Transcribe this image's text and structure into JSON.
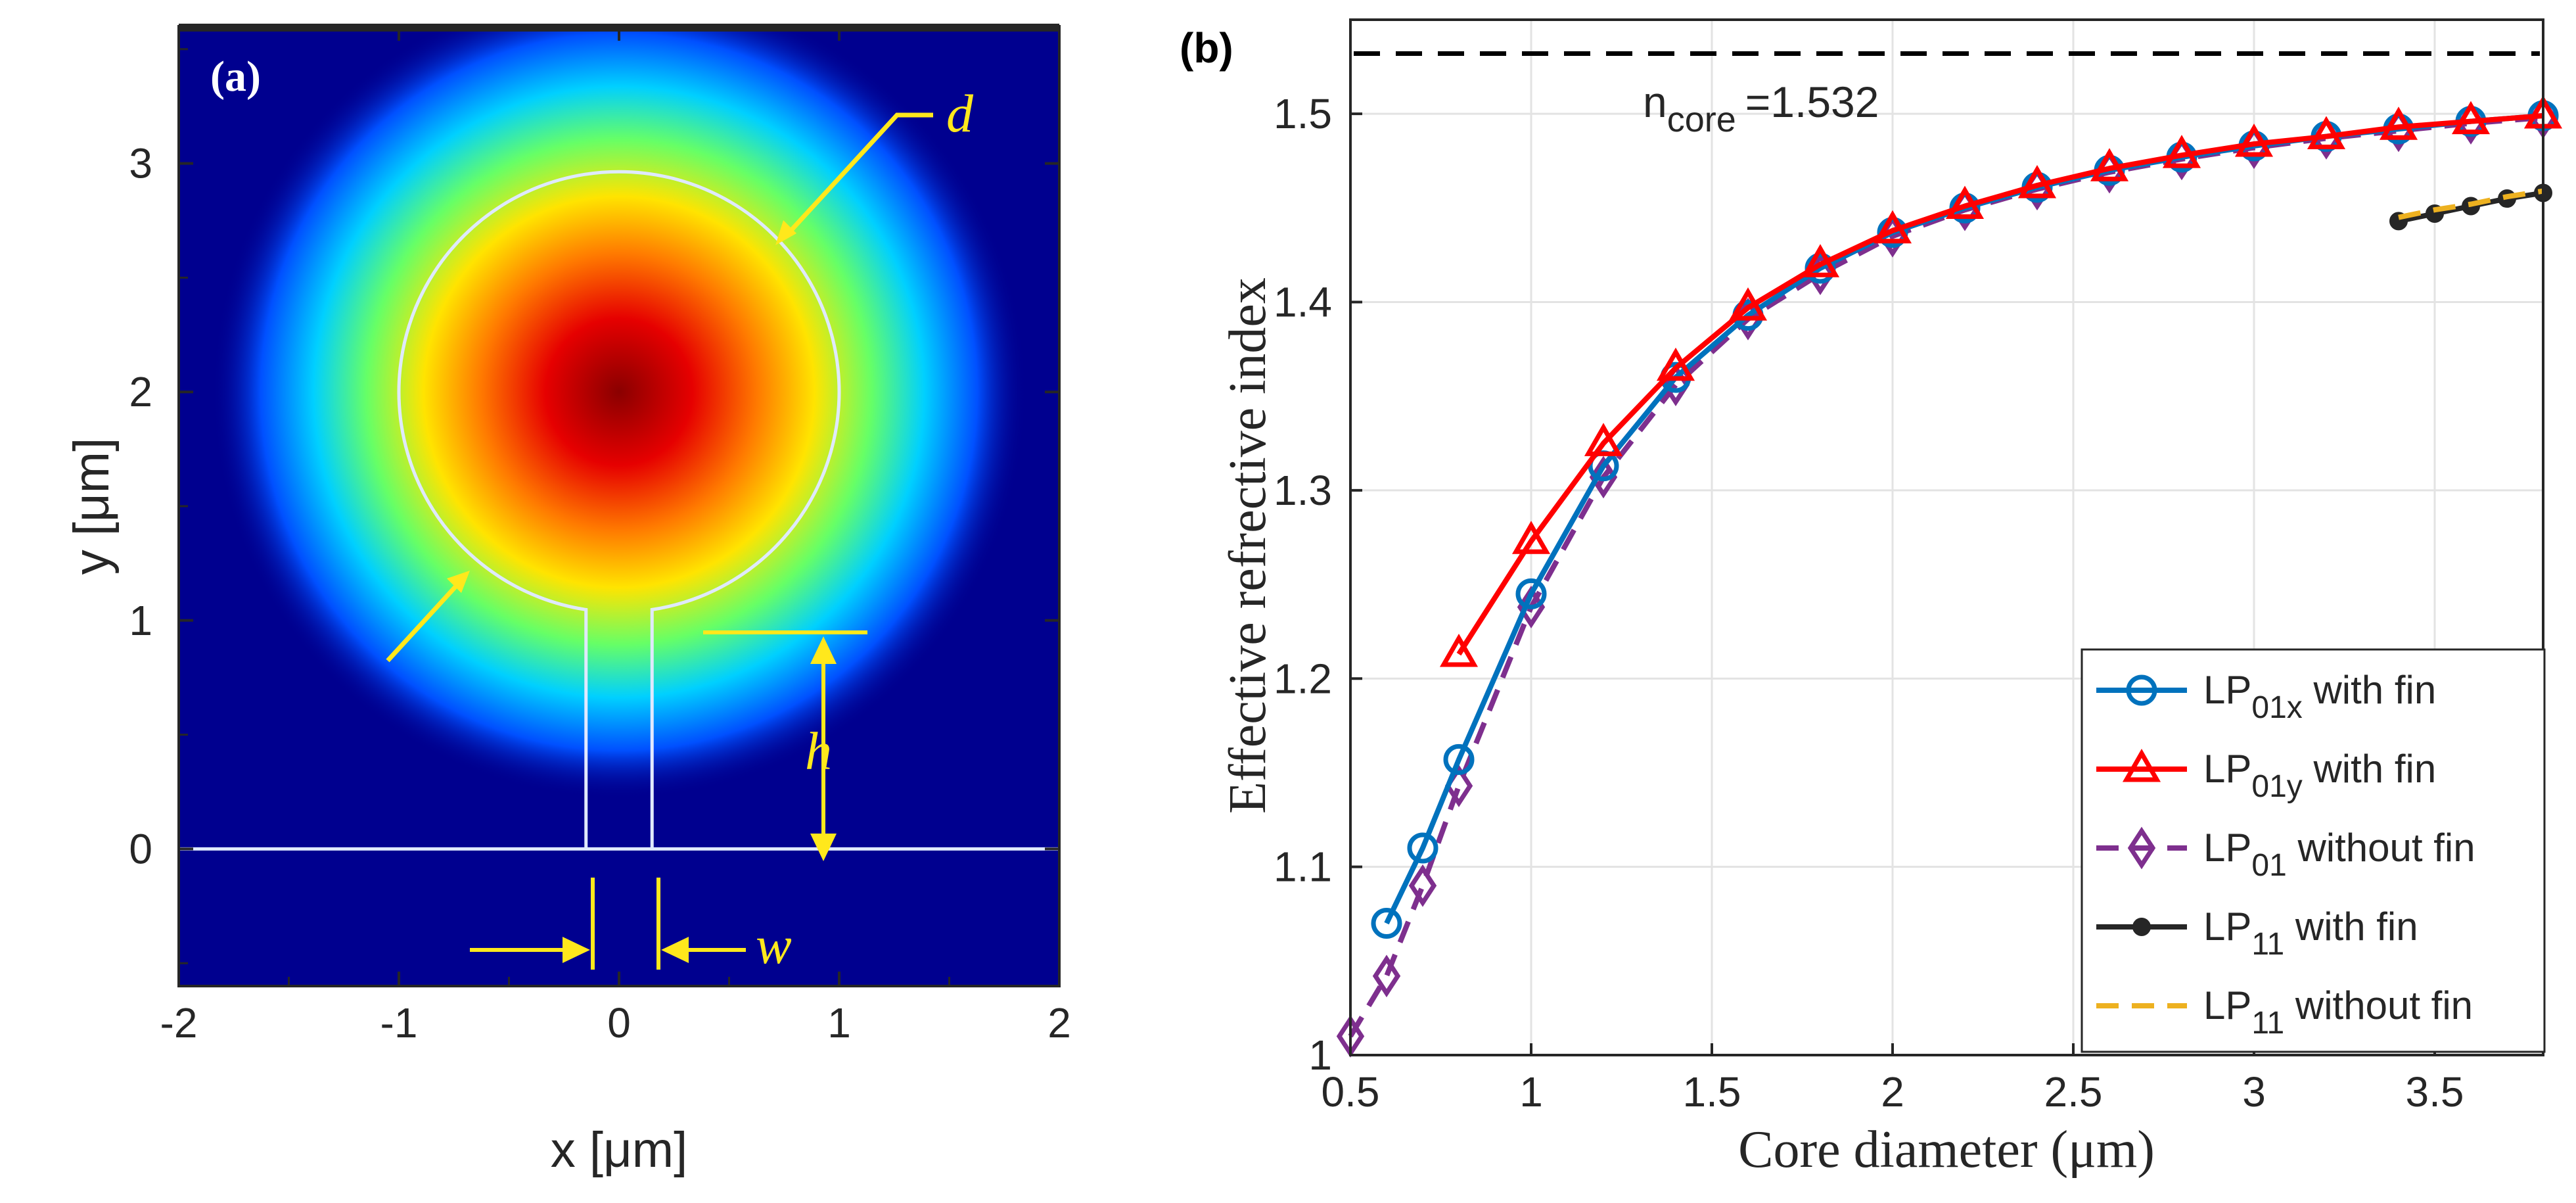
{
  "chart_data": [
    {
      "panel": "(a)",
      "type": "heatmap",
      "title": "",
      "xlabel": "x [μm]",
      "ylabel": "y [μm]",
      "xlim": [
        -2,
        2
      ],
      "ylim": [
        -0.6,
        3.6
      ],
      "xticks": [
        "-2",
        "-1",
        "0",
        "1",
        "2"
      ],
      "yticks": [
        "0",
        "1",
        "2",
        "3"
      ],
      "field_center": [
        0,
        2
      ],
      "core_radius": 1.0,
      "fin": {
        "width": 0.3,
        "top": 1.0,
        "bottom": 0.0
      },
      "annotations": {
        "d": "d",
        "h": "h",
        "w": "w"
      },
      "colors": {
        "background": "#00008f",
        "outline": "#dfe9ff",
        "arrow": "#ffe81c"
      }
    },
    {
      "panel": "(b)",
      "type": "line",
      "xlabel": "Core diameter (μm)",
      "ylabel": "Effective refrective index",
      "xlim": [
        0.5,
        3.8
      ],
      "ylim": [
        1.0,
        1.55
      ],
      "xticks": [
        "0.5",
        "1",
        "1.5",
        "2",
        "2.5",
        "3",
        "3.5"
      ],
      "yticks": [
        "1",
        "1.1",
        "1.2",
        "1.3",
        "1.4",
        "1.5"
      ],
      "reference_line": {
        "value": 1.532,
        "label_main": "n",
        "label_sub": "core",
        "label_val": "=1.532"
      },
      "series": [
        {
          "name": "LP01x with fin",
          "label_main": "LP",
          "label_sub": "01x",
          "label_rest": " with fin",
          "color": "#0072bd",
          "marker": "circle",
          "dash": "solid",
          "x": [
            0.6,
            0.7,
            0.8,
            1.0,
            1.2,
            1.4,
            1.6,
            1.8,
            2.0,
            2.2,
            2.4,
            2.6,
            2.8,
            3.0,
            3.2,
            3.4,
            3.6,
            3.8
          ],
          "values": [
            1.07,
            1.11,
            1.157,
            1.245,
            1.313,
            1.36,
            1.393,
            1.418,
            1.437,
            1.45,
            1.461,
            1.47,
            1.477,
            1.483,
            1.488,
            1.492,
            1.496,
            1.499
          ]
        },
        {
          "name": "LP01y with fin",
          "label_main": "LP",
          "label_sub": "01y",
          "label_rest": " with fin",
          "color": "#ff0000",
          "marker": "triangle",
          "dash": "solid",
          "x": [
            0.8,
            1.0,
            1.2,
            1.4,
            1.6,
            1.8,
            2.0,
            2.2,
            2.4,
            2.6,
            2.8,
            3.0,
            3.2,
            3.4,
            3.6,
            3.8
          ],
          "values": [
            1.213,
            1.273,
            1.325,
            1.365,
            1.397,
            1.42,
            1.438,
            1.451,
            1.462,
            1.471,
            1.478,
            1.484,
            1.488,
            1.493,
            1.496,
            1.499
          ]
        },
        {
          "name": "LP01 without fin",
          "label_main": "LP",
          "label_sub": "01",
          "label_rest": " without fin",
          "color": "#7e2f8e",
          "marker": "diamond",
          "dash": "dashed",
          "x": [
            0.5,
            0.6,
            0.7,
            0.8,
            1.0,
            1.2,
            1.4,
            1.6,
            1.8,
            2.0,
            2.2,
            2.4,
            2.6,
            2.8,
            3.0,
            3.2,
            3.4,
            3.6,
            3.8
          ],
          "values": [
            1.01,
            1.042,
            1.09,
            1.143,
            1.238,
            1.307,
            1.356,
            1.391,
            1.415,
            1.435,
            1.449,
            1.46,
            1.469,
            1.476,
            1.482,
            1.487,
            1.491,
            1.495,
            1.498
          ]
        },
        {
          "name": "LP11 with fin",
          "label_main": "LP",
          "label_sub": "11",
          "label_rest": " with fin",
          "color": "#262626",
          "marker": "dot",
          "dash": "solid",
          "x": [
            3.4,
            3.5,
            3.6,
            3.7,
            3.8
          ],
          "values": [
            1.443,
            1.447,
            1.451,
            1.455,
            1.458
          ]
        },
        {
          "name": "LP11 without fin",
          "label_main": "LP",
          "label_sub": "11",
          "label_rest": " without fin",
          "color": "#edb120",
          "marker": "none",
          "dash": "dashed",
          "x": [
            3.4,
            3.5,
            3.6,
            3.7,
            3.8
          ],
          "values": [
            1.445,
            1.449,
            1.452,
            1.456,
            1.459
          ]
        }
      ]
    }
  ]
}
